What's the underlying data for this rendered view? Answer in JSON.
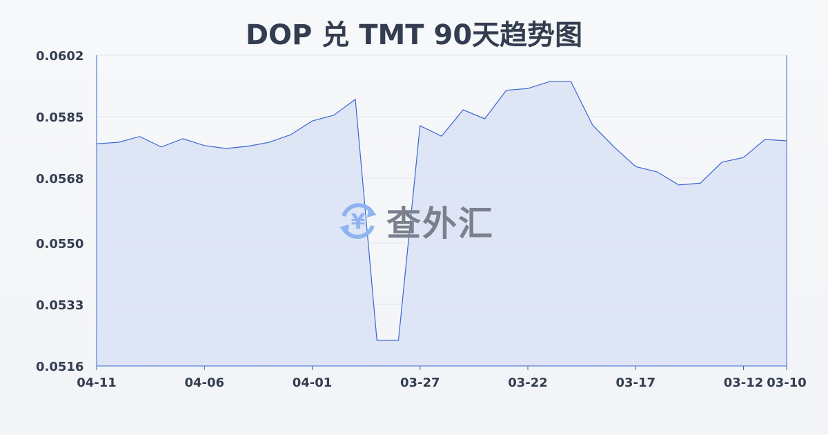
{
  "chart_data": {
    "type": "area",
    "title": "DOP 兑 TMT 90天趋势图",
    "xlabel": "",
    "ylabel": "",
    "ylim": [
      0.0516,
      0.0602
    ],
    "yticks": [
      "0.0602",
      "0.0585",
      "0.0568",
      "0.0550",
      "0.0533",
      "0.0516"
    ],
    "xticks": [
      "04-11",
      "04-06",
      "04-01",
      "03-27",
      "03-22",
      "03-17",
      "03-12",
      "03-10"
    ],
    "grid": true,
    "x": [
      "04-11",
      "04-10",
      "04-09",
      "04-08",
      "04-07",
      "04-06",
      "04-05",
      "04-04",
      "04-03",
      "04-02",
      "04-01",
      "03-31",
      "03-30",
      "03-29",
      "03-28",
      "03-27",
      "03-26",
      "03-25",
      "03-24",
      "03-23",
      "03-22",
      "03-21",
      "03-20",
      "03-19",
      "03-18",
      "03-17",
      "03-16",
      "03-15",
      "03-14",
      "03-13",
      "03-12",
      "03-11",
      "03-10"
    ],
    "values": [
      0.05775,
      0.05779,
      0.05795,
      0.05766,
      0.05789,
      0.0577,
      0.05762,
      0.05768,
      0.05779,
      0.058,
      0.05838,
      0.05854,
      0.05898,
      0.05231,
      0.05231,
      0.05825,
      0.05796,
      0.05869,
      0.05844,
      0.05923,
      0.05928,
      0.05947,
      0.05947,
      0.05827,
      0.05766,
      0.05712,
      0.05697,
      0.05661,
      0.05666,
      0.05724,
      0.05737,
      0.05787,
      0.05783
    ],
    "colors": {
      "line": "#3a66d0",
      "fill": "#dbe3f5",
      "grid": "#e3e6ea",
      "text": "#333d4f"
    }
  },
  "watermark": {
    "text": "查外汇",
    "icon": "yen-exchange-icon",
    "icon_color": "#8fb4f0"
  }
}
